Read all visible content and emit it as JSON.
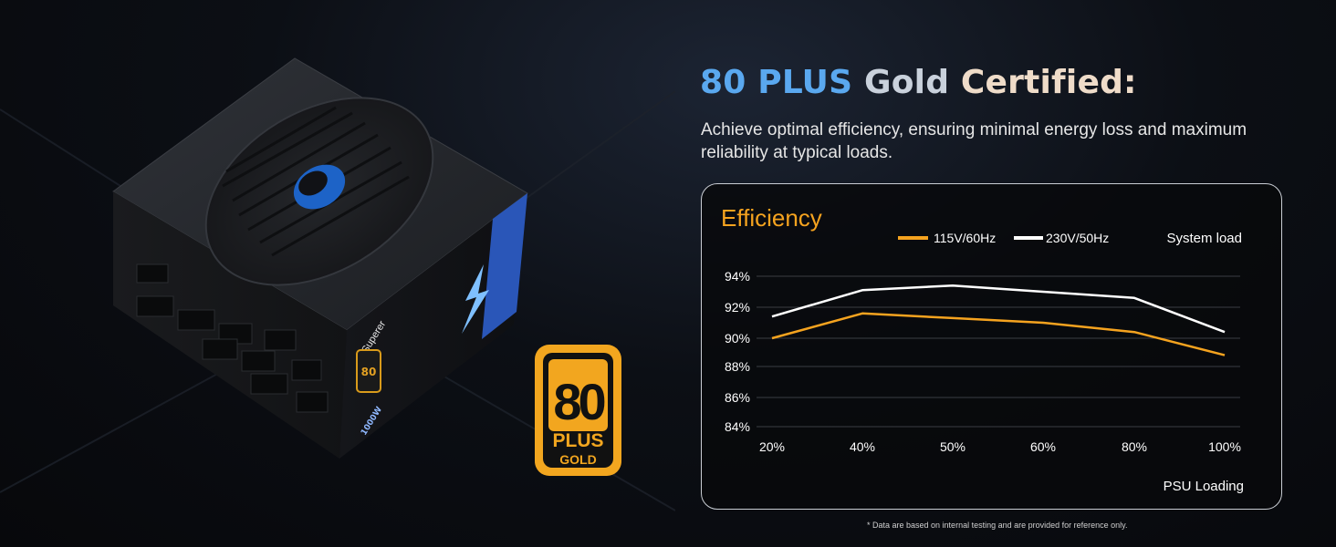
{
  "heading": {
    "parts": [
      {
        "text": "80 PLUS ",
        "color": "#5aa8ef"
      },
      {
        "text": "Gold ",
        "color": "#c9d1dc"
      },
      {
        "text": "Certified:",
        "color": "#efdcc9"
      }
    ]
  },
  "subtitle": "Achieve optimal efficiency, ensuring minimal energy loss and maximum reliability at typical loads.",
  "product": {
    "brand_label": "Superer",
    "wattage_label": "1000W",
    "badge": {
      "number": "80",
      "plus": "PLUS",
      "tier": "GOLD",
      "color": "#f2a61f"
    }
  },
  "chart_data": {
    "type": "line",
    "title": "Efficiency",
    "xlabel": "PSU Loading",
    "ylabel": "System load",
    "categories": [
      "20%",
      "40%",
      "50%",
      "60%",
      "80%",
      "100%"
    ],
    "y_ticks": [
      "94%",
      "92%",
      "90%",
      "88%",
      "86%",
      "84%"
    ],
    "ylim": [
      84,
      94
    ],
    "grid": true,
    "legend_position": "top",
    "series": [
      {
        "name": "115V/60Hz",
        "color": "#f5a31f",
        "values": [
          90.0,
          91.6,
          91.3,
          91.0,
          90.4,
          88.8
        ]
      },
      {
        "name": "230V/50Hz",
        "color": "#ffffff",
        "values": [
          91.4,
          93.1,
          93.4,
          93.0,
          92.6,
          90.4
        ]
      }
    ],
    "title_color": "#f5a31f"
  },
  "footnote": "* Data are based on internal testing and are provided for reference only."
}
